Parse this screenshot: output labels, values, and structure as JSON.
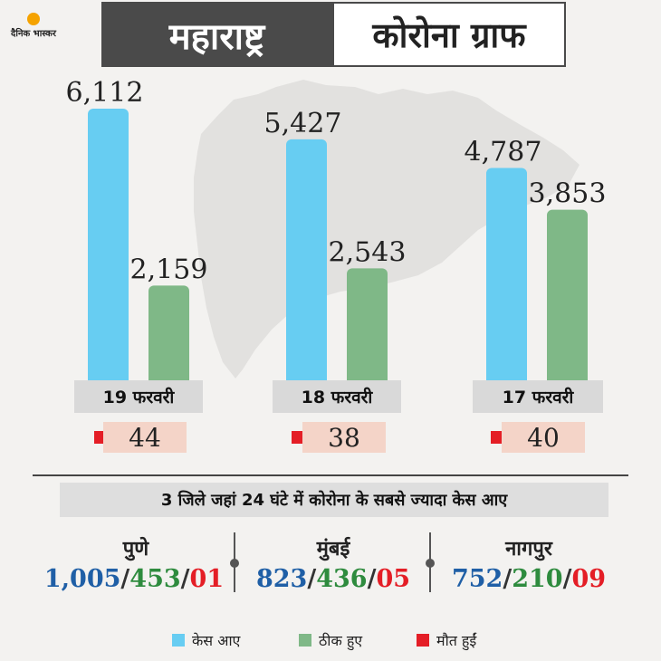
{
  "brand": {
    "logo_text": "दैनिक भास्कर",
    "logo_icon": "sun-icon"
  },
  "header": {
    "left_title": "महाराष्ट्र",
    "right_title": "कोरोना ग्राफ"
  },
  "colors": {
    "cases": "#67cdf2",
    "recovered": "#7fb887",
    "deaths": "#e41e26",
    "header_bg": "#4a4a4a"
  },
  "chart_data": {
    "type": "bar",
    "categories": [
      "19 फरवरी",
      "18 फरवरी",
      "17 फरवरी"
    ],
    "series": [
      {
        "name": "केस आए",
        "values": [
          6112,
          5427,
          4787
        ],
        "labels": [
          "6,112",
          "5,427",
          "4,787"
        ]
      },
      {
        "name": "ठीक हुए",
        "values": [
          2159,
          2543,
          3853
        ],
        "labels": [
          "2,159",
          "2,543",
          "3,853"
        ]
      }
    ],
    "deaths": [
      "44",
      "38",
      "40"
    ],
    "legend": [
      "केस आए",
      "ठीक हुए",
      "मौत हुईं"
    ]
  },
  "districts": {
    "title": "3 जिले जहां 24 घंटे में कोरोना के सबसे ज्यादा केस आए",
    "items": [
      {
        "city": "पुणे",
        "cases": "1,005",
        "recovered": "453",
        "deaths": "01"
      },
      {
        "city": "मुंबई",
        "cases": "823",
        "recovered": "436",
        "deaths": "05"
      },
      {
        "city": "नागपुर",
        "cases": "752",
        "recovered": "210",
        "deaths": "09"
      }
    ]
  },
  "slash": "/"
}
